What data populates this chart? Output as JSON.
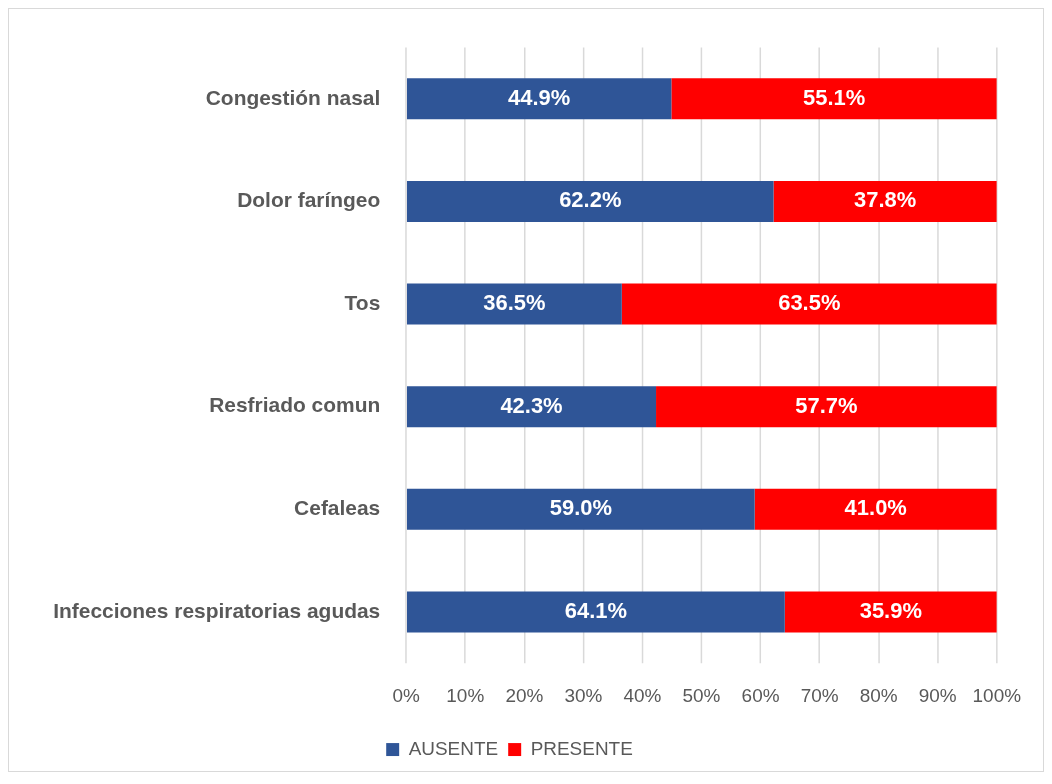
{
  "chart_data": {
    "type": "bar",
    "orientation": "horizontal",
    "stacked": true,
    "categories": [
      "Congestión nasal",
      "Dolor faríngeo",
      "Tos",
      "Resfriado comun",
      "Cefaleas",
      "Infecciones respiratorias agudas"
    ],
    "series": [
      {
        "name": "AUSENTE",
        "color": "#2f5597",
        "values": [
          44.9,
          62.2,
          36.5,
          42.3,
          59.0,
          64.1
        ],
        "value_labels": [
          "44.9%",
          "62.2%",
          "36.5%",
          "42.3%",
          "59.0%",
          "64.1%"
        ]
      },
      {
        "name": "PRESENTE",
        "color": "#ff0000",
        "values": [
          55.1,
          37.8,
          63.5,
          57.7,
          41.0,
          35.9
        ],
        "value_labels": [
          "55.1%",
          "37.8%",
          "63.5%",
          "57.7%",
          "41.0%",
          "35.9%"
        ]
      }
    ],
    "xlim": [
      0,
      100
    ],
    "xticks": [
      {
        "value": 0,
        "label": "0%"
      },
      {
        "value": 10,
        "label": "10%"
      },
      {
        "value": 20,
        "label": "20%"
      },
      {
        "value": 30,
        "label": "30%"
      },
      {
        "value": 40,
        "label": "40%"
      },
      {
        "value": 50,
        "label": "50%"
      },
      {
        "value": 60,
        "label": "60%"
      },
      {
        "value": 70,
        "label": "70%"
      },
      {
        "value": 80,
        "label": "80%"
      },
      {
        "value": 90,
        "label": "90%"
      },
      {
        "value": 100,
        "label": "100%"
      }
    ],
    "grid": "x",
    "legend": "bottom"
  }
}
